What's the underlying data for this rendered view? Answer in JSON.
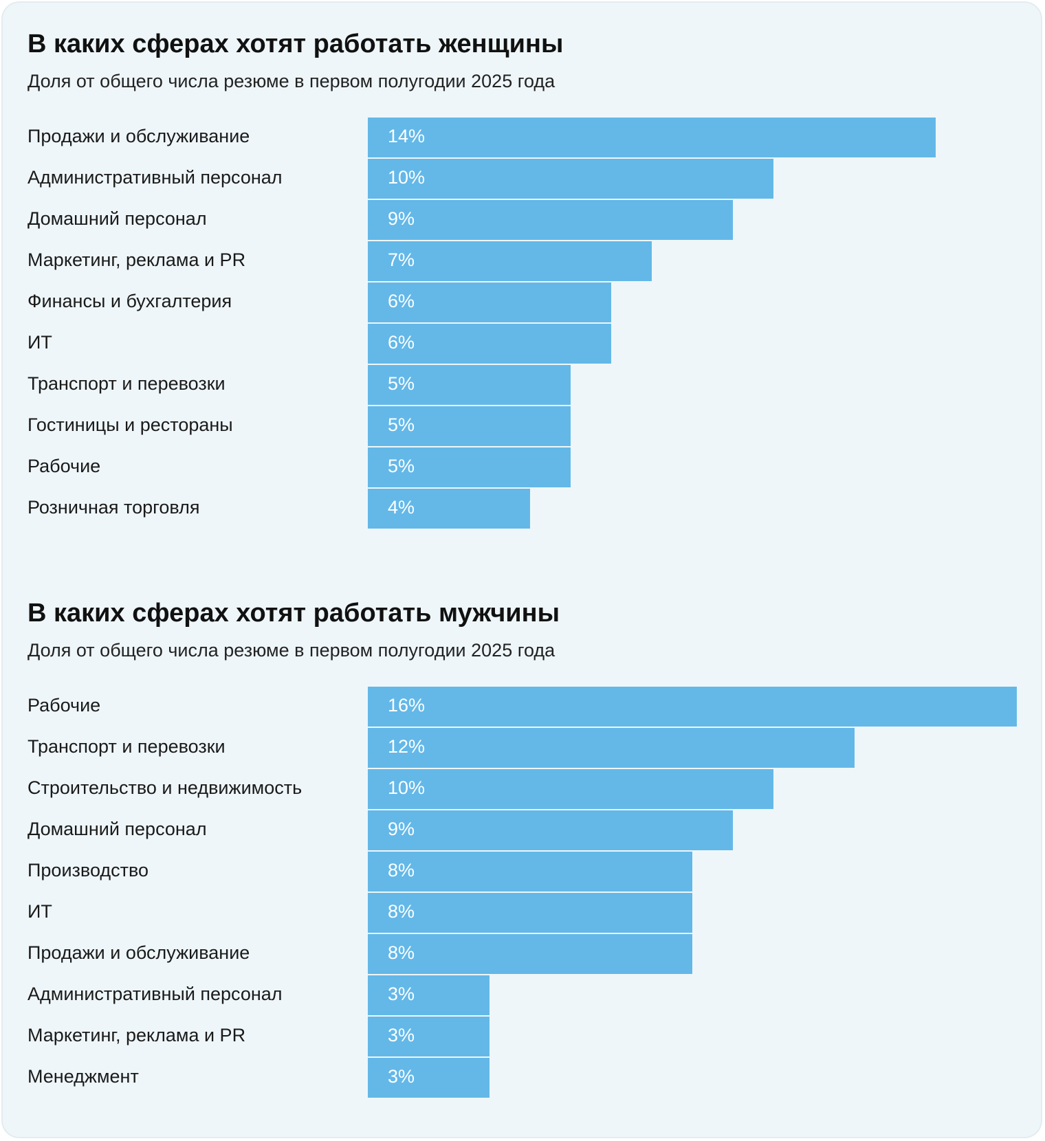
{
  "chart_data": [
    {
      "type": "bar",
      "orientation": "horizontal",
      "title": "В каких сферах хотят работать женщины",
      "subtitle": "Доля от общего числа резюме в первом полугодии 2025 года",
      "color": "#63b8e8",
      "categories": [
        "Продажи и обслуживание",
        "Административный персонал",
        "Домашний персонал",
        "Маркетинг, реклама и PR",
        "Финансы и бухгалтерия",
        "ИТ",
        "Транспорт и перевозки",
        "Гостиницы и рестораны",
        "Рабочие",
        "Розничная торговля"
      ],
      "values": [
        14,
        10,
        9,
        7,
        6,
        6,
        5,
        5,
        5,
        4
      ],
      "value_labels": [
        "14%",
        "10%",
        "9%",
        "7%",
        "6%",
        "6%",
        "5%",
        "5%",
        "5%",
        "4%"
      ]
    },
    {
      "type": "bar",
      "orientation": "horizontal",
      "title": "В каких сферах хотят работать мужчины",
      "subtitle": "Доля от общего числа резюме в первом полугодии 2025 года",
      "color": "#63b8e8",
      "categories": [
        "Рабочие",
        "Транспорт и перевозки",
        "Строительство и недвижимость",
        "Домашний персонал",
        "Производство",
        "ИТ",
        "Продажи и обслуживание",
        "Административный персонал",
        "Маркетинг, реклама и PR",
        "Менеджмент"
      ],
      "values": [
        16,
        12,
        10,
        9,
        8,
        8,
        8,
        3,
        3,
        3
      ],
      "value_labels": [
        "16%",
        "12%",
        "10%",
        "9%",
        "8%",
        "8%",
        "8%",
        "3%",
        "3%",
        "3%"
      ]
    }
  ]
}
